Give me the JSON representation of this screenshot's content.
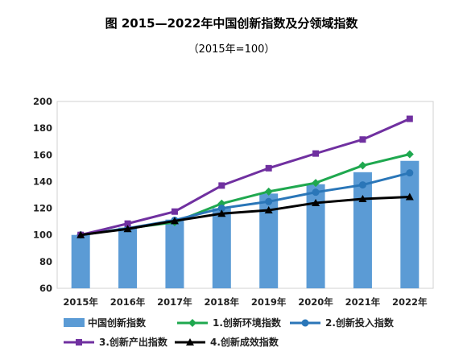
{
  "title": "图 2015—2022年中国创新指数及分领域指数",
  "subtitle": "（2015年=100）",
  "chart_data": {
    "type": "bar",
    "categories": [
      "2015年",
      "2016年",
      "2017年",
      "2018年",
      "2019年",
      "2020年",
      "2021年",
      "2022年"
    ],
    "ylim": [
      60,
      200
    ],
    "yticks": [
      60,
      80,
      100,
      120,
      140,
      160,
      180,
      200
    ],
    "grid": false,
    "legend_position": "bottom",
    "bar_series": {
      "name": "中国创新指数",
      "color": "#5b9bd5",
      "values": [
        100,
        105.5,
        111.5,
        120,
        131,
        138,
        147,
        155.5
      ]
    },
    "line_series": [
      {
        "name": "1.创新环境指数",
        "color": "#1fa84f",
        "marker": "diamond",
        "values": [
          100,
          105,
          109.5,
          123.5,
          132.5,
          139,
          152,
          160.5
        ]
      },
      {
        "name": "2.创新投入指数",
        "color": "#2a76b8",
        "marker": "circle",
        "values": [
          100,
          105,
          111,
          120,
          125,
          132,
          137.5,
          146.5
        ]
      },
      {
        "name": "3.创新产出指数",
        "color": "#7030a0",
        "marker": "square",
        "values": [
          100,
          108.5,
          117.5,
          137,
          150,
          161,
          171.5,
          187
        ]
      },
      {
        "name": "4.创新成效指数",
        "color": "#000000",
        "marker": "triangle",
        "values": [
          100,
          104.5,
          110.5,
          116,
          118.5,
          124,
          127,
          128.5
        ]
      }
    ]
  }
}
